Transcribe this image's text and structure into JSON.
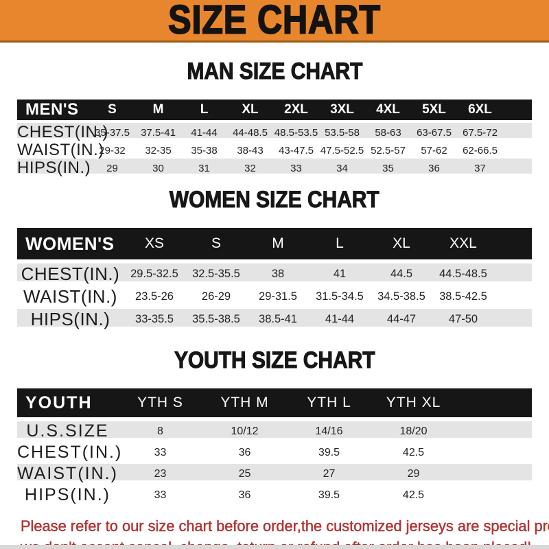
{
  "banner": {
    "title": "SIZE CHART"
  },
  "colors": {
    "orange": "#E8862D",
    "bar": "#161616",
    "rowgray": "#E4E4E4",
    "red": "#B23535",
    "strip": "#D9D9D9"
  },
  "tables": [
    {
      "id": "men",
      "title": "MAN SIZE CHART",
      "header_label": "MEN'S",
      "columns": [
        "S",
        "M",
        "L",
        "XL",
        "2XL",
        "3XL",
        "4XL",
        "5XL",
        "6XL"
      ],
      "rows": [
        {
          "label": "CHEST(IN.)",
          "values": [
            "35-37.5",
            "37.5-41",
            "41-44",
            "44-48.5",
            "48.5-53.5",
            "53.5-58",
            "58-63",
            "63-67.5",
            "67.5-72"
          ]
        },
        {
          "label": "WAIST(IN.)",
          "values": [
            "29-32",
            "32-35",
            "35-38",
            "38-43",
            "43-47.5",
            "47.5-52.5",
            "52.5-57",
            "57-62",
            "62-66.5"
          ]
        },
        {
          "label": "HIPS(IN.)",
          "values": [
            "29",
            "30",
            "31",
            "32",
            "33",
            "34",
            "35",
            "36",
            "37"
          ]
        }
      ]
    },
    {
      "id": "women",
      "title": "WOMEN SIZE CHART",
      "header_label": "WOMEN'S",
      "columns": [
        "XS",
        "S",
        "M",
        "L",
        "XL",
        "XXL"
      ],
      "rows": [
        {
          "label": "CHEST(IN.)",
          "values": [
            "29.5-32.5",
            "32.5-35.5",
            "38",
            "41",
            "44.5",
            "44.5-48.5"
          ]
        },
        {
          "label": "WAIST(IN.)",
          "values": [
            "23.5-26",
            "26-29",
            "29-31.5",
            "31.5-34.5",
            "34.5-38.5",
            "38.5-42.5"
          ]
        },
        {
          "label": "HIPS(IN.)",
          "values": [
            "33-35.5",
            "35.5-38.5",
            "38.5-41",
            "41-44",
            "44-47",
            "47-50"
          ]
        }
      ]
    },
    {
      "id": "youth",
      "title": "YOUTH SIZE CHART",
      "header_label": "YOUTH",
      "columns": [
        "YTH S",
        "YTH M",
        "YTH L",
        "YTH XL"
      ],
      "rows": [
        {
          "label": "U.S.SIZE",
          "values": [
            "8",
            "10/12",
            "14/16",
            "18/20"
          ]
        },
        {
          "label": "CHEST(IN.)",
          "values": [
            "33",
            "36",
            "39.5",
            "42.5"
          ]
        },
        {
          "label": "WAIST(IN.)",
          "values": [
            "23",
            "25",
            "27",
            "29"
          ]
        },
        {
          "label": "HIPS(IN.)",
          "values": [
            "33",
            "36",
            "39.5",
            "42.5"
          ]
        }
      ]
    }
  ],
  "footer": {
    "line1": "Please refer to our size chart before order,the customized jerseys are special products,",
    "line2": "we don't accept cancel, change, teturn or refund after order has been placed!"
  }
}
